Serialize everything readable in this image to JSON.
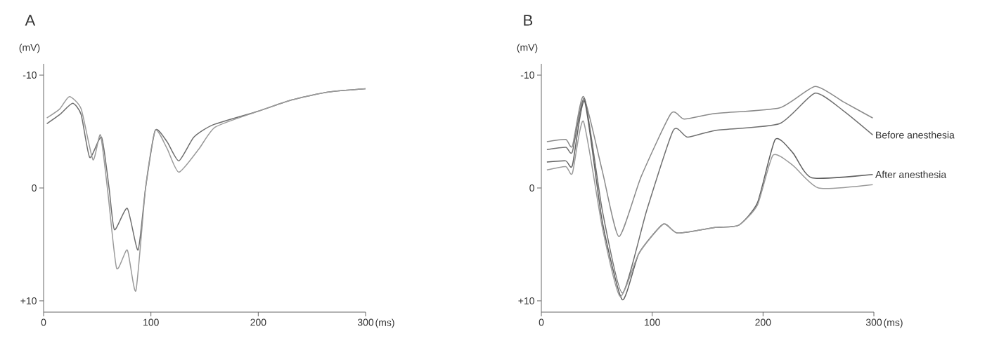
{
  "chart_data": [
    {
      "type": "line",
      "title": "A",
      "xlabel": "(ms)",
      "ylabel": "(mV)",
      "xlim": [
        0,
        300
      ],
      "ylim": [
        11,
        -11
      ],
      "xticks": [
        0,
        100,
        200,
        300
      ],
      "yticks": [
        -10,
        0,
        {
          "value": 10,
          "label": "+10"
        }
      ],
      "series": [
        {
          "color": "#6e6e6e",
          "x": [
            3,
            15,
            27,
            35,
            43,
            54,
            61,
            66,
            78,
            88,
            95,
            104,
            115,
            126,
            140,
            158,
            200,
            231,
            265,
            300
          ],
          "values": [
            -5.7,
            -6.5,
            -7.5,
            -6.5,
            -2.7,
            -4.5,
            0,
            3.7,
            1.8,
            5.5,
            0,
            -5.1,
            -4.1,
            -2.4,
            -4.5,
            -5.6,
            -6.8,
            -7.8,
            -8.5,
            -8.8
          ]
        },
        {
          "color": "#9a9a9a",
          "x": [
            3,
            15,
            24,
            35,
            46,
            53,
            60,
            68,
            78,
            86,
            95,
            104,
            115,
            126,
            145,
            160,
            200,
            231,
            265,
            300
          ],
          "values": [
            -6.2,
            -7.0,
            -8.1,
            -7.0,
            -2.5,
            -4.7,
            0.5,
            7.1,
            5.5,
            9.1,
            0,
            -5.1,
            -3.5,
            -1.4,
            -3.5,
            -5.4,
            -6.8,
            -7.8,
            -8.5,
            -8.8
          ]
        }
      ]
    },
    {
      "type": "line",
      "title": "B",
      "xlabel": "(ms)",
      "ylabel": "(mV)",
      "xlim": [
        0,
        300
      ],
      "ylim": [
        11,
        -11
      ],
      "xticks": [
        0,
        100,
        200,
        300
      ],
      "yticks": [
        -10,
        0,
        {
          "value": 10,
          "label": "+10"
        }
      ],
      "series": [
        {
          "color": "#8a8a8a",
          "x": [
            5,
            22,
            28,
            38,
            55,
            70,
            90,
            117,
            129,
            157,
            215,
            247,
            273,
            299
          ],
          "values": [
            -4.1,
            -4.3,
            -3.7,
            -8.1,
            -1.5,
            4.3,
            -1.0,
            -6.6,
            -6.1,
            -6.6,
            -7.1,
            -9.0,
            -7.6,
            -6.2
          ]
        },
        {
          "name": "Before anesthesia",
          "color": "#707070",
          "x": [
            5,
            22,
            28,
            39,
            55,
            73,
            95,
            119,
            132,
            157,
            215,
            247,
            273,
            299
          ],
          "values": [
            -3.4,
            -3.6,
            -3.2,
            -7.9,
            2.0,
            9.3,
            2.0,
            -5.1,
            -4.5,
            -5.1,
            -5.7,
            -8.4,
            -6.8,
            -4.7
          ]
        },
        {
          "name": "After anesthesia",
          "color": "#606060",
          "x": [
            5,
            22,
            28,
            39,
            55,
            73,
            88,
            110,
            123,
            157,
            178,
            195,
            211,
            227,
            244,
            299
          ],
          "values": [
            -2.3,
            -2.4,
            -2.0,
            -7.7,
            3.0,
            9.9,
            5.8,
            3.2,
            4.0,
            3.5,
            3.3,
            1.3,
            -4.3,
            -3.1,
            -0.9,
            -1.2
          ]
        },
        {
          "color": "#9a9a9a",
          "x": [
            5,
            22,
            28,
            38,
            55,
            71,
            88,
            110,
            123,
            157,
            178,
            195,
            209,
            227,
            250,
            299
          ],
          "values": [
            -1.6,
            -1.9,
            -1.3,
            -5.9,
            3.5,
            9.6,
            5.8,
            3.2,
            4.0,
            3.5,
            3.3,
            1.5,
            -2.9,
            -2.0,
            0.0,
            -0.3
          ]
        }
      ]
    }
  ]
}
